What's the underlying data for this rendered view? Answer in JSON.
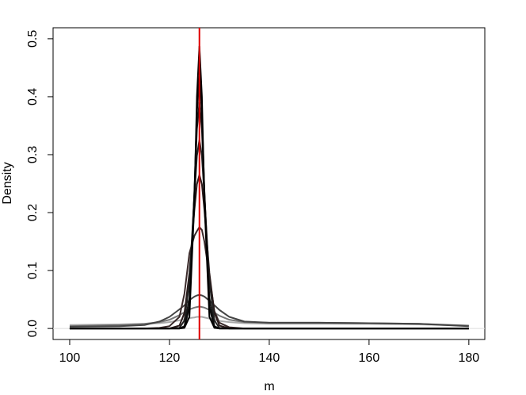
{
  "chart_data": {
    "type": "line",
    "x_label": "m",
    "y_label": "Density",
    "x": [
      100,
      110,
      115,
      118,
      120,
      122,
      123,
      124,
      125,
      125.5,
      126,
      126.5,
      127,
      128,
      129,
      130,
      132,
      135,
      140,
      150,
      160,
      170,
      180
    ],
    "series": [
      {
        "color": "#aaaaaa",
        "values": [
          0.006,
          0.007,
          0.008,
          0.009,
          0.011,
          0.014,
          0.016,
          0.018,
          0.019,
          0.02,
          0.02,
          0.02,
          0.019,
          0.017,
          0.015,
          0.013,
          0.011,
          0.009,
          0.008,
          0.008,
          0.008,
          0.007,
          0.005
        ]
      },
      {
        "color": "#777777",
        "values": [
          0.004,
          0.006,
          0.008,
          0.011,
          0.015,
          0.023,
          0.028,
          0.033,
          0.036,
          0.037,
          0.038,
          0.037,
          0.036,
          0.032,
          0.027,
          0.022,
          0.015,
          0.011,
          0.01,
          0.01,
          0.009,
          0.008,
          0.005
        ]
      },
      {
        "color": "#444444",
        "values": [
          0.003,
          0.004,
          0.006,
          0.012,
          0.02,
          0.033,
          0.04,
          0.049,
          0.055,
          0.057,
          0.058,
          0.057,
          0.055,
          0.048,
          0.04,
          0.032,
          0.02,
          0.012,
          0.01,
          0.01,
          0.009,
          0.008,
          0.004
        ]
      },
      {
        "color": "#3a2a2a",
        "values": [
          0,
          0,
          0,
          0.001,
          0.004,
          0.02,
          0.06,
          0.13,
          0.16,
          0.168,
          0.175,
          0.17,
          0.15,
          0.09,
          0.03,
          0.01,
          0.002,
          0,
          0,
          0,
          0,
          0,
          0
        ]
      },
      {
        "color": "#2a1a1a",
        "values": [
          0,
          0,
          0,
          0,
          0,
          0.005,
          0.027,
          0.096,
          0.205,
          0.249,
          0.265,
          0.249,
          0.205,
          0.096,
          0.027,
          0.005,
          0,
          0,
          0,
          0,
          0,
          0,
          0
        ]
      },
      {
        "color": "#222222",
        "values": [
          0,
          0,
          0,
          0,
          0,
          0.001,
          0.014,
          0.081,
          0.229,
          0.298,
          0.325,
          0.298,
          0.229,
          0.081,
          0.014,
          0.001,
          0,
          0,
          0,
          0,
          0,
          0,
          0
        ]
      },
      {
        "color": "#151515",
        "values": [
          0,
          0,
          0,
          0,
          0,
          0,
          0.004,
          0.053,
          0.237,
          0.344,
          0.39,
          0.344,
          0.237,
          0.053,
          0.004,
          0,
          0,
          0,
          0,
          0,
          0,
          0,
          0
        ]
      },
      {
        "color": "#0a0a0a",
        "values": [
          0,
          0,
          0,
          0,
          0,
          0,
          0.002,
          0.037,
          0.235,
          0.373,
          0.435,
          0.373,
          0.235,
          0.037,
          0.002,
          0,
          0,
          0,
          0,
          0,
          0,
          0,
          0
        ]
      },
      {
        "color": "#000000",
        "values": [
          0,
          0,
          0,
          0,
          0,
          0,
          0.001,
          0.02,
          0.22,
          0.4,
          0.487,
          0.4,
          0.22,
          0.02,
          0.001,
          0,
          0,
          0,
          0,
          0,
          0,
          0,
          0
        ]
      }
    ],
    "xlim": [
      96.67,
      183.2
    ],
    "xticks": [
      100,
      120,
      140,
      160,
      180
    ],
    "ylim": [
      -0.019,
      0.519
    ],
    "yticks": [
      {
        "value": 0,
        "label": "0.0"
      },
      0.1,
      0.2,
      0.3,
      0.4,
      0.5
    ],
    "vline": 126,
    "vline_color": "#e00000",
    "hline": 0,
    "hline_color": "#dddddd"
  }
}
